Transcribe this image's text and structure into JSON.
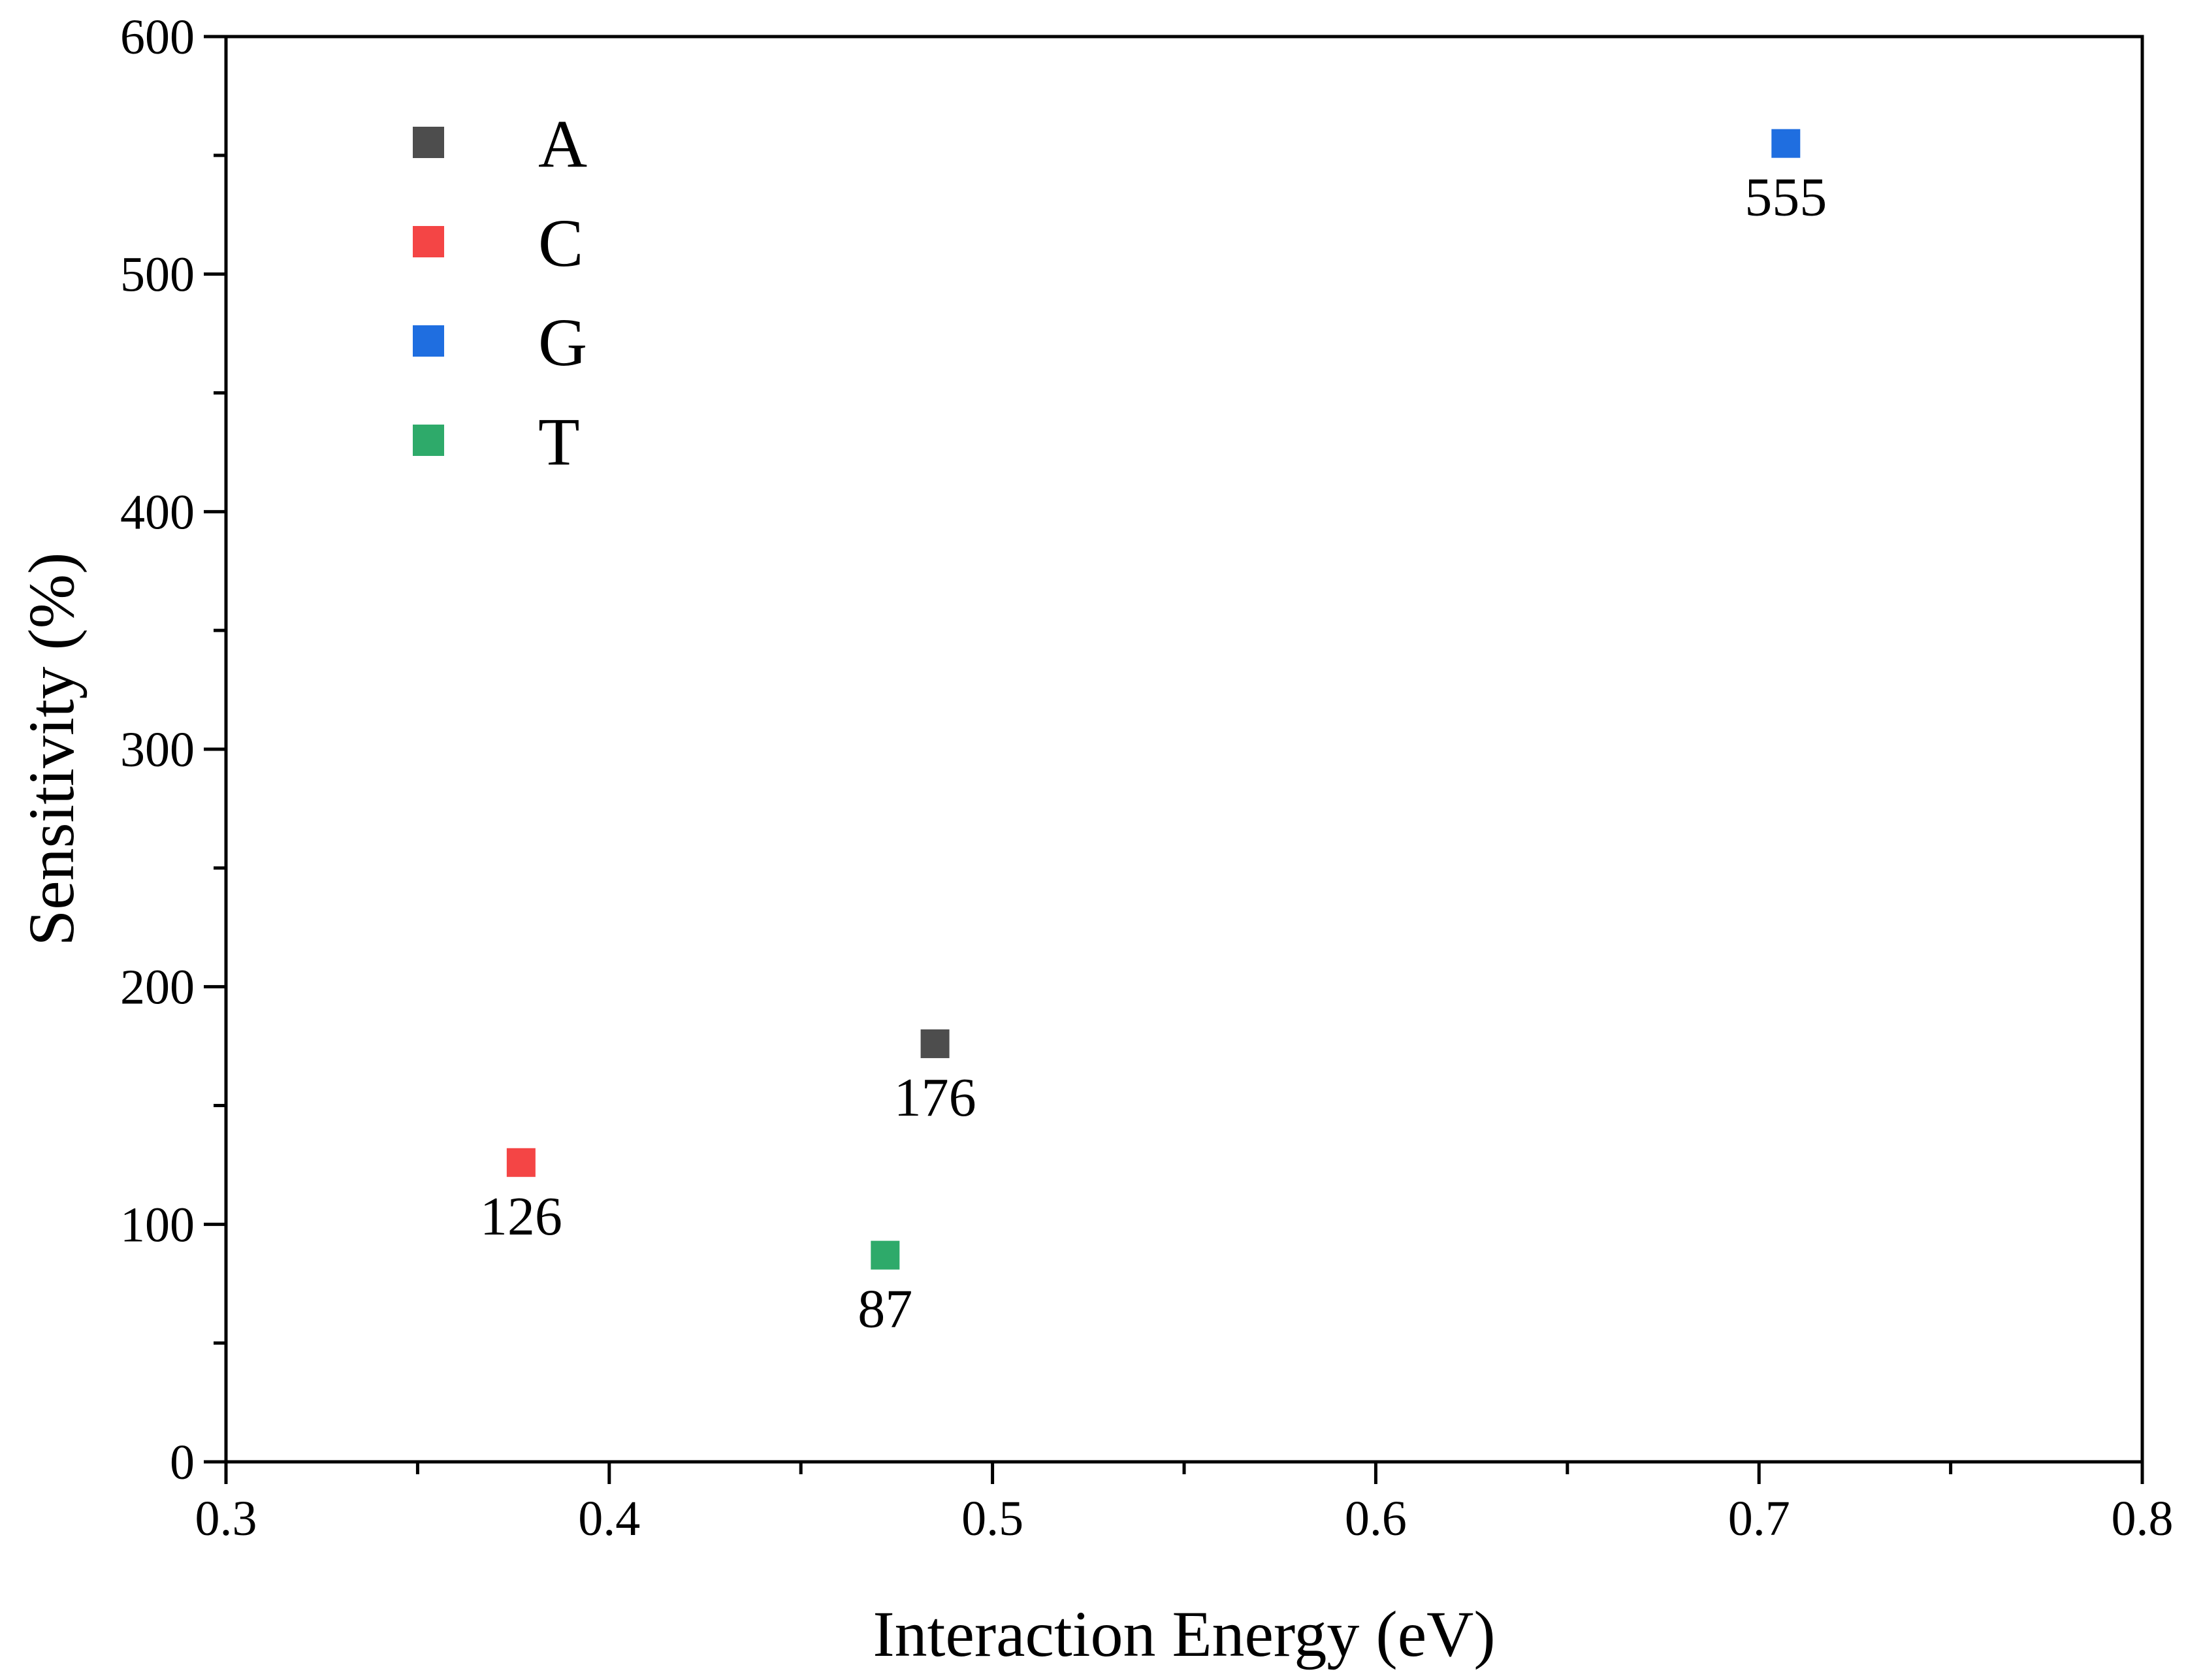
{
  "chart_data": {
    "type": "scatter",
    "title": "",
    "xlabel": "Interaction Energy (eV)",
    "ylabel": "Sensitivity (%)",
    "xlim": [
      0.3,
      0.8
    ],
    "ylim": [
      0,
      600
    ],
    "x_ticks": [
      "0.3",
      "0.4",
      "0.5",
      "0.6",
      "0.7",
      "0.8"
    ],
    "y_ticks": [
      "0",
      "100",
      "200",
      "300",
      "400",
      "500",
      "600"
    ],
    "legend_position": "top-left",
    "grid": false,
    "series": [
      {
        "name": "A",
        "color": "#4d4d4d",
        "x": 0.485,
        "y": 176,
        "label": "176"
      },
      {
        "name": "C",
        "color": "#f44545",
        "x": 0.377,
        "y": 126,
        "label": "126"
      },
      {
        "name": "G",
        "color": "#1f6ee0",
        "x": 0.707,
        "y": 555,
        "label": "555"
      },
      {
        "name": "T",
        "color": "#2eaa6a",
        "x": 0.472,
        "y": 87,
        "label": "87"
      }
    ]
  }
}
